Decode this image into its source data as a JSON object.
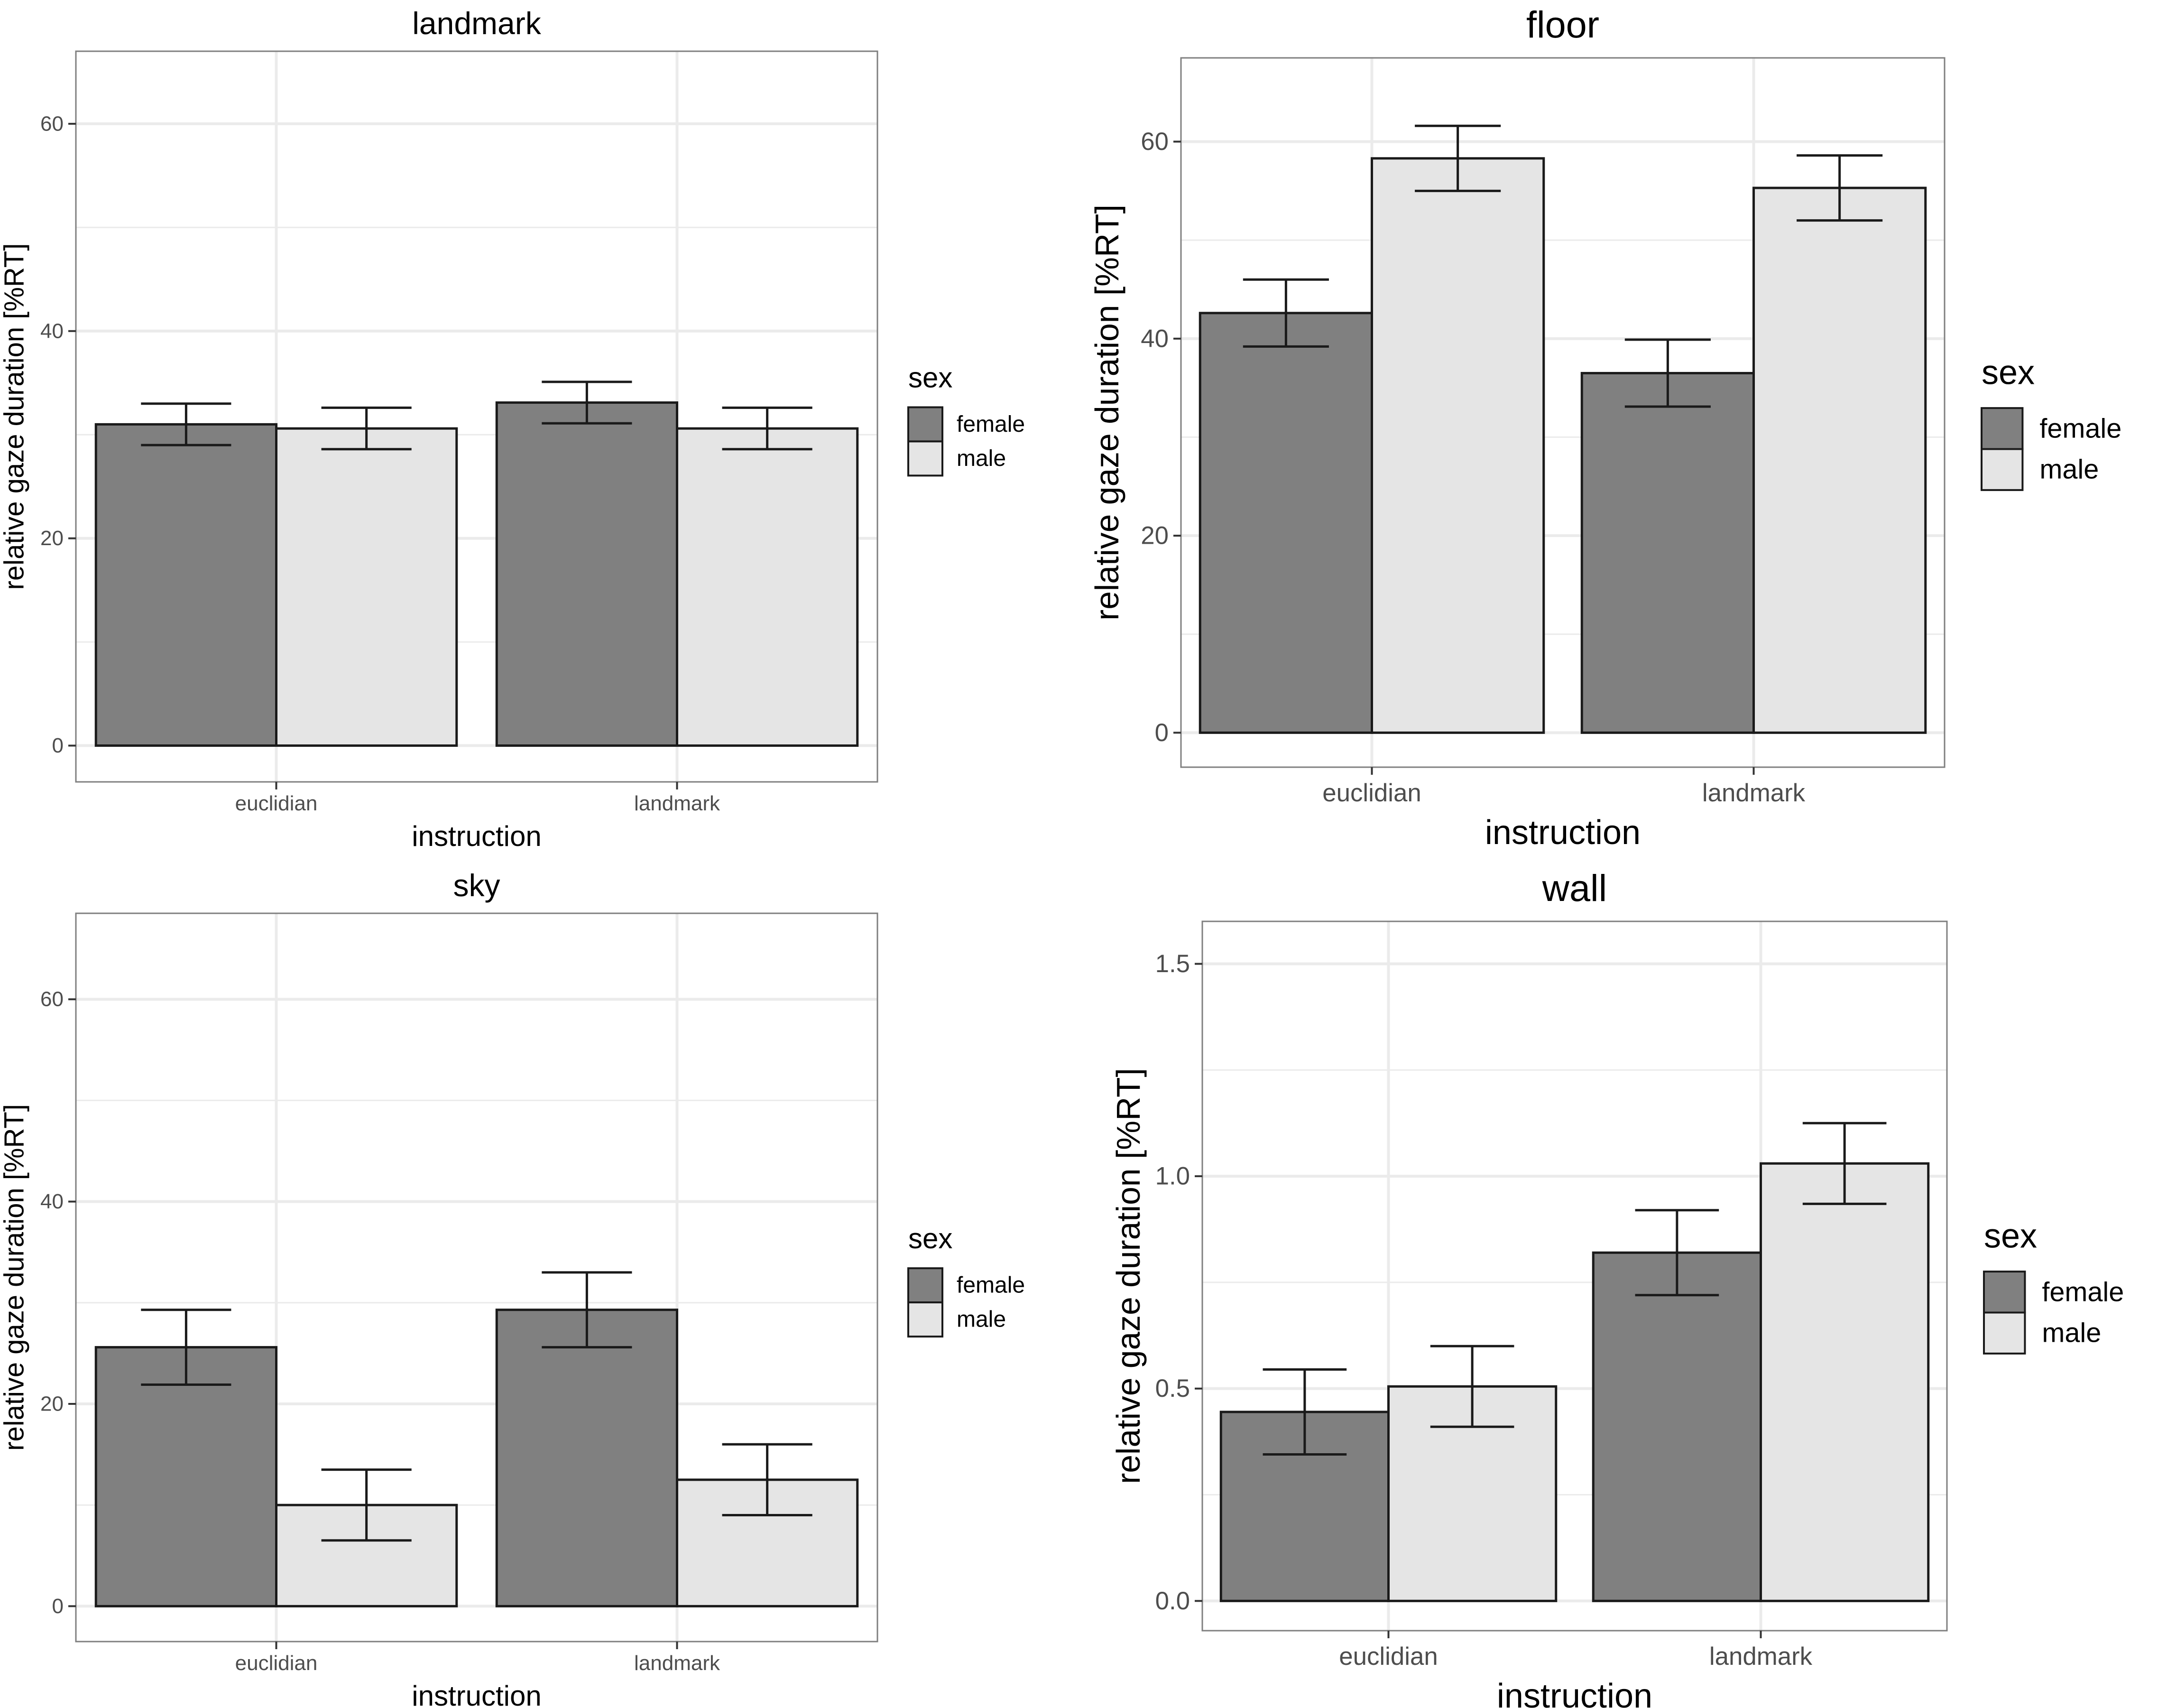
{
  "figure": {
    "style": {
      "female_fill": "#808080",
      "male_fill": "#e5e5e5",
      "bar_stroke": "#1a1a1a",
      "grid_color": "#ebebeb",
      "panel_border": "#7f7f7f",
      "text_color": "#000000",
      "tick_color": "#4d4d4d"
    }
  },
  "chart_data": [
    {
      "type": "bar",
      "title": "landmark",
      "xlabel": "instruction",
      "ylabel": "relative gaze duration [%RT]",
      "categories": [
        "euclidian",
        "landmark"
      ],
      "ylim": [
        -3.5,
        67
      ],
      "yticks": [
        0,
        20,
        40,
        60
      ],
      "ytick_labels": [
        "0",
        "20",
        "40",
        "60"
      ],
      "legend": {
        "title": "sex",
        "labels": [
          "female",
          "male"
        ],
        "position": "right"
      },
      "series": [
        {
          "name": "female",
          "values": [
            31.0,
            33.1
          ],
          "errors": [
            2.0,
            2.0
          ]
        },
        {
          "name": "male",
          "values": [
            30.6,
            30.6
          ],
          "errors": [
            2.0,
            2.0
          ]
        }
      ]
    },
    {
      "type": "bar",
      "title": "floor",
      "xlabel": "instruction",
      "ylabel": "relative gaze duration [%RT]",
      "categories": [
        "euclidian",
        "landmark"
      ],
      "ylim": [
        -3.5,
        68.5
      ],
      "yticks": [
        0,
        20,
        40,
        60
      ],
      "ytick_labels": [
        "0",
        "20",
        "40",
        "60"
      ],
      "legend": {
        "title": "sex",
        "labels": [
          "female",
          "male"
        ],
        "position": "right"
      },
      "series": [
        {
          "name": "female",
          "values": [
            42.6,
            36.5
          ],
          "errors": [
            3.4,
            3.4
          ]
        },
        {
          "name": "male",
          "values": [
            58.3,
            55.3
          ],
          "errors": [
            3.3,
            3.3
          ]
        }
      ]
    },
    {
      "type": "bar",
      "title": "sky",
      "xlabel": "instruction",
      "ylabel": "relative gaze duration [%RT]",
      "categories": [
        "euclidian",
        "landmark"
      ],
      "ylim": [
        -3.5,
        68.5
      ],
      "yticks": [
        0,
        20,
        40,
        60
      ],
      "ytick_labels": [
        "0",
        "20",
        "40",
        "60"
      ],
      "legend": {
        "title": "sex",
        "labels": [
          "female",
          "male"
        ],
        "position": "right"
      },
      "series": [
        {
          "name": "female",
          "values": [
            25.6,
            29.3
          ],
          "errors": [
            3.7,
            3.7
          ]
        },
        {
          "name": "male",
          "values": [
            10.0,
            12.5
          ],
          "errors": [
            3.5,
            3.5
          ]
        }
      ]
    },
    {
      "type": "bar",
      "title": "wall",
      "xlabel": "instruction",
      "ylabel": "relative gaze duration [%RT]",
      "categories": [
        "euclidian",
        "landmark"
      ],
      "ylim": [
        -0.07,
        1.6
      ],
      "yticks": [
        0.0,
        0.5,
        1.0,
        1.5
      ],
      "ytick_labels": [
        "0.0",
        "0.5",
        "1.0",
        "1.5"
      ],
      "legend": {
        "title": "sex",
        "labels": [
          "female",
          "male"
        ],
        "position": "right"
      },
      "series": [
        {
          "name": "female",
          "values": [
            0.445,
            0.82
          ],
          "errors": [
            0.1,
            0.1
          ]
        },
        {
          "name": "male",
          "values": [
            0.505,
            1.03
          ],
          "errors": [
            0.095,
            0.095
          ]
        }
      ]
    }
  ]
}
